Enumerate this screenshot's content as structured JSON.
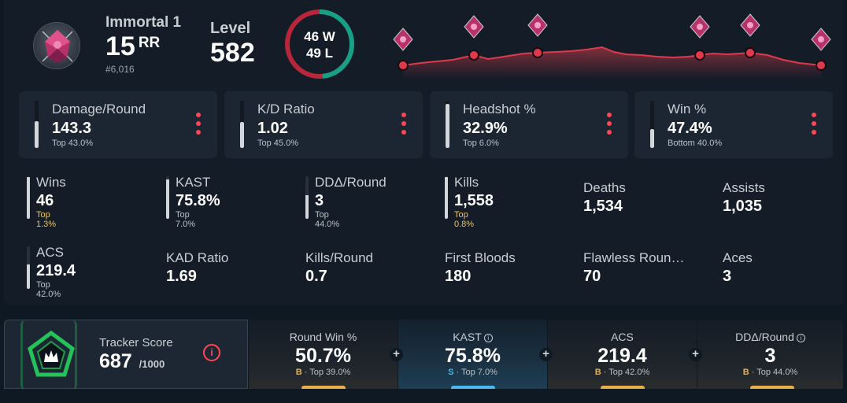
{
  "rank": {
    "name": "Immortal 1",
    "rr": "15",
    "rr_unit": "RR",
    "position": "#6,016",
    "icon": "immortal-rank-icon"
  },
  "level": {
    "label": "Level",
    "value": "582"
  },
  "record": {
    "wins": "46",
    "wins_label": "W",
    "losses": "49",
    "losses_label": "L",
    "win_color": "#16a085",
    "loss_color": "#b8263a",
    "win_fraction": 0.484
  },
  "cards": [
    {
      "label": "Damage/Round",
      "value": "143.3",
      "percentile": "Top 43.0%",
      "bar_fraction": 0.57
    },
    {
      "label": "K/D Ratio",
      "value": "1.02",
      "percentile": "Top 45.0%",
      "bar_fraction": 0.55
    },
    {
      "label": "Headshot %",
      "value": "32.9%",
      "percentile": "Top 6.0%",
      "bar_fraction": 0.94
    },
    {
      "label": "Win %",
      "value": "47.4%",
      "percentile": "Bottom 40.0%",
      "bar_fraction": 0.4
    }
  ],
  "stats": [
    {
      "label": "Wins",
      "value": "46",
      "percentile": "Top 1.3%",
      "bar_fraction": 0.98
    },
    {
      "label": "KAST",
      "value": "75.8%",
      "percentile": "Top 7.0%",
      "bar_fraction": 0.93
    },
    {
      "label": "DDΔ/Round",
      "value": "3",
      "percentile": "Top 44.0%",
      "bar_fraction": 0.56
    },
    {
      "label": "Kills",
      "value": "1,558",
      "percentile": "Top 0.8%",
      "bar_fraction": 0.99
    },
    {
      "label": "Deaths",
      "value": "1,534"
    },
    {
      "label": "Assists",
      "value": "1,035"
    },
    {
      "label": "ACS",
      "value": "219.4",
      "percentile": "Top 42.0%",
      "bar_fraction": 0.58
    },
    {
      "label": "KAD Ratio",
      "value": "1.69"
    },
    {
      "label": "Kills/Round",
      "value": "0.7"
    },
    {
      "label": "First Bloods",
      "value": "180"
    },
    {
      "label": "Flawless Roun…",
      "value": "70"
    },
    {
      "label": "Aces",
      "value": "3"
    }
  ],
  "tracker": {
    "label": "Tracker Score",
    "value": "687",
    "max": "/1000",
    "info_glyph": "i",
    "icon": "tracker-score-pentagon-icon",
    "columns": [
      {
        "label": "Round Win %",
        "value": "50.7%",
        "grade": "B",
        "percentile": "Top 39.0%",
        "grade_color": "#e8b04a",
        "has_info": false
      },
      {
        "label": "KAST",
        "value": "75.8%",
        "grade": "S",
        "percentile": "Top 7.0%",
        "grade_color": "#4cb8f0",
        "has_info": true
      },
      {
        "label": "ACS",
        "value": "219.4",
        "grade": "B",
        "percentile": "Top 42.0%",
        "grade_color": "#e8b04a",
        "has_info": false
      },
      {
        "label": "DDΔ/Round",
        "value": "3",
        "grade": "B",
        "percentile": "Top 44.0%",
        "grade_color": "#e8b04a",
        "has_info": true
      }
    ]
  },
  "plus_glyph": "+"
}
